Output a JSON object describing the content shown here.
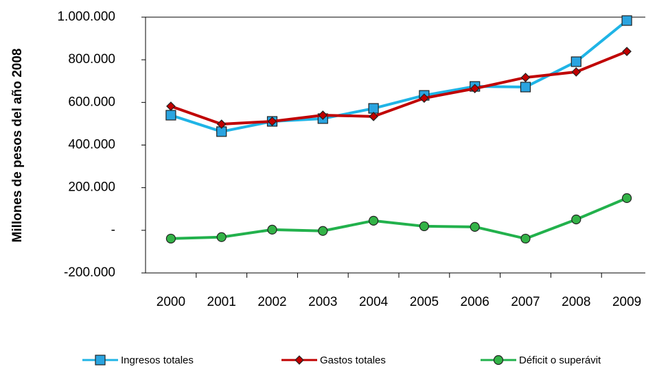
{
  "chart_data": {
    "type": "line",
    "y_label": "Millones de pesos del año 2008",
    "categories": [
      "2000",
      "2001",
      "2002",
      "2003",
      "2004",
      "2005",
      "2006",
      "2007",
      "2008",
      "2009"
    ],
    "series": [
      {
        "name": "Ingresos totales",
        "color": "#1fb4e6",
        "marker": "square",
        "marker_color": "#2aa4e0",
        "values": [
          540000,
          463000,
          511000,
          524000,
          572000,
          633000,
          675000,
          672000,
          791000,
          984000
        ]
      },
      {
        "name": "Gastos totales",
        "color": "#c00000",
        "marker": "diamond",
        "marker_color": "#c00000",
        "values": [
          582000,
          498000,
          511000,
          540000,
          534000,
          620000,
          665000,
          717000,
          743000,
          839000
        ]
      },
      {
        "name": "Déficit o superávit",
        "color": "#22b14c",
        "marker": "circle",
        "marker_color": "#33b347",
        "values": [
          -39000,
          -32000,
          3000,
          -3000,
          45000,
          19000,
          16000,
          -39000,
          51000,
          151000
        ]
      }
    ],
    "ylim": [
      -200000,
      1000000
    ],
    "yticks": [
      {
        "value": -200000,
        "label": "-200.000"
      },
      {
        "value": 0,
        "label": "-"
      },
      {
        "value": 200000,
        "label": "200.000"
      },
      {
        "value": 400000,
        "label": "400.000"
      },
      {
        "value": 600000,
        "label": "600.000"
      },
      {
        "value": 800000,
        "label": "800.000"
      },
      {
        "value": 1000000,
        "label": "1.000.000"
      }
    ],
    "grid": false,
    "legend": "bottom"
  }
}
